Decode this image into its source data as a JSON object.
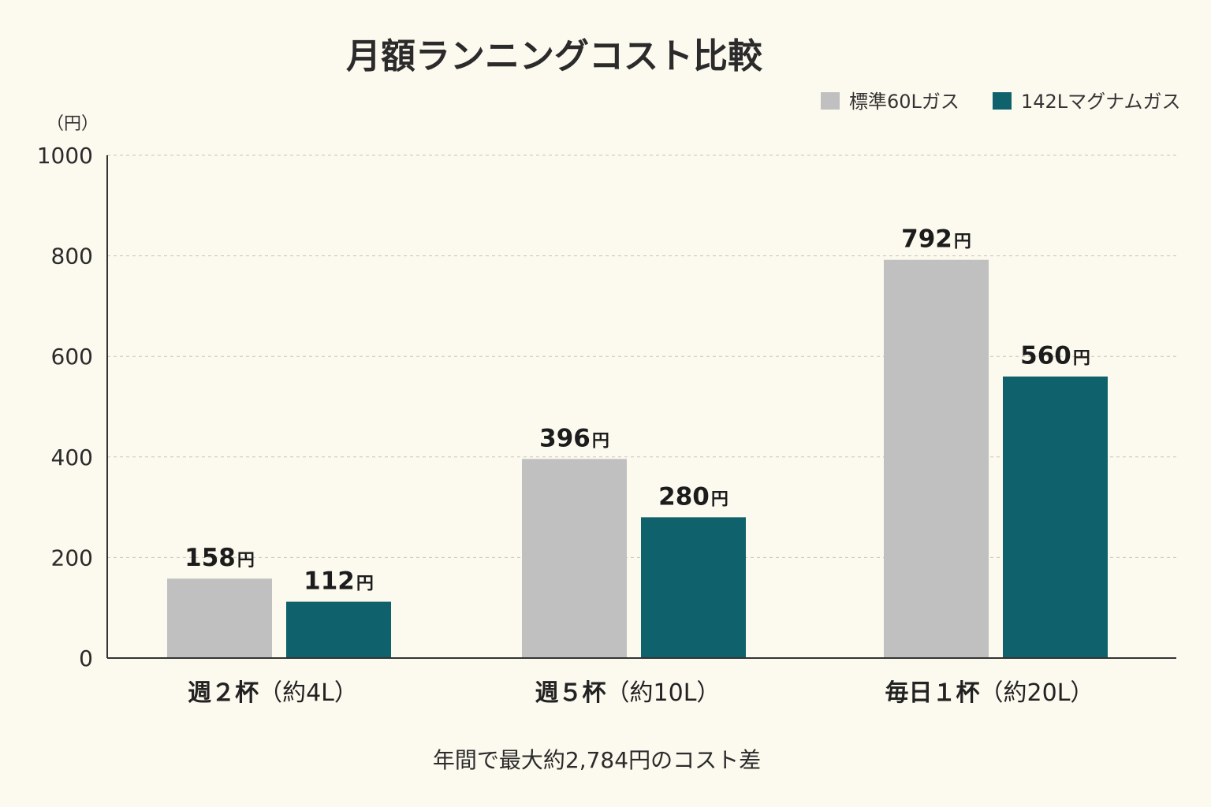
{
  "chart_data": {
    "type": "bar",
    "title": "月額ランニングコスト比較",
    "ylabel": "（円）",
    "ylim": [
      0,
      1000
    ],
    "yticks": [
      "0",
      "200",
      "400",
      "600",
      "800",
      "1000"
    ],
    "ytick_values": [
      0,
      200,
      400,
      600,
      800,
      1000
    ],
    "grid": true,
    "legend_position": "top-right",
    "categories": [
      {
        "main": "週２杯",
        "sub": "（約4L）"
      },
      {
        "main": "週５杯",
        "sub": "（約10L）"
      },
      {
        "main": "毎日１杯",
        "sub": "（約20L）"
      }
    ],
    "series": [
      {
        "name": "標準60Lガス",
        "color": "#c0c0c0",
        "values": [
          158,
          396,
          792
        ],
        "labels": [
          "158",
          "396",
          "792"
        ]
      },
      {
        "name": "142Lマグナムガス",
        "color": "#0f626b",
        "values": [
          112,
          280,
          560
        ],
        "labels": [
          "112",
          "280",
          "560"
        ]
      }
    ],
    "value_unit": "円",
    "footnote": "年間で最大約2,784円のコスト差"
  }
}
